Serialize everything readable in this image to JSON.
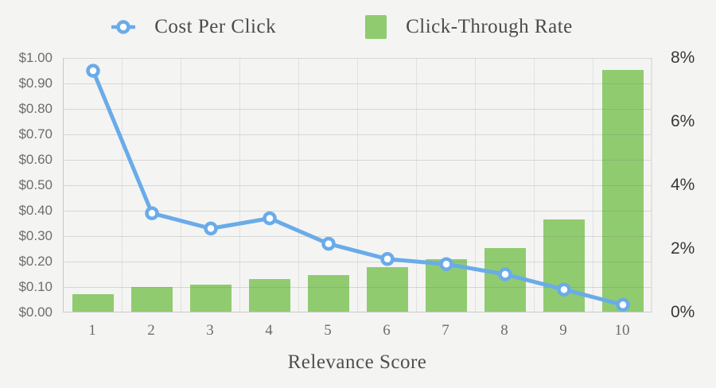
{
  "background_color": "#f4f4f3",
  "legend": {
    "items": [
      {
        "label": "Cost Per Click",
        "type": "line",
        "color": "#6aabe8"
      },
      {
        "label": "Click-Through Rate",
        "type": "bar",
        "color": "#90cb70"
      }
    ]
  },
  "chart_data": {
    "type": "combo-bar-line",
    "x": [
      1,
      2,
      3,
      4,
      5,
      6,
      7,
      8,
      9,
      10
    ],
    "xlabel": "Relevance Score",
    "series": [
      {
        "name": "Cost Per Click",
        "type": "line",
        "axis": "left",
        "color": "#6aabe8",
        "marker": "hollow-circle",
        "values": [
          0.95,
          0.39,
          0.33,
          0.37,
          0.27,
          0.21,
          0.19,
          0.15,
          0.09,
          0.03
        ]
      },
      {
        "name": "Click-Through Rate",
        "type": "bar",
        "axis": "right",
        "color": "#90cb70",
        "values": [
          0.55,
          0.78,
          0.85,
          1.02,
          1.15,
          1.4,
          1.65,
          2.0,
          2.9,
          7.6
        ]
      }
    ],
    "left_axis": {
      "min": 0,
      "max": 1.0,
      "tick_step": 0.1,
      "tick_labels": [
        "$0.00",
        "$0.10",
        "$0.20",
        "$0.30",
        "$0.40",
        "$0.50",
        "$0.60",
        "$0.70",
        "$0.80",
        "$0.90",
        "$1.00"
      ]
    },
    "right_axis": {
      "min": 0,
      "max": 8,
      "tick_step": 2,
      "tick_labels": [
        "0%",
        "2%",
        "4%",
        "6%",
        "8%"
      ]
    },
    "grid": true,
    "legend_position": "top"
  }
}
